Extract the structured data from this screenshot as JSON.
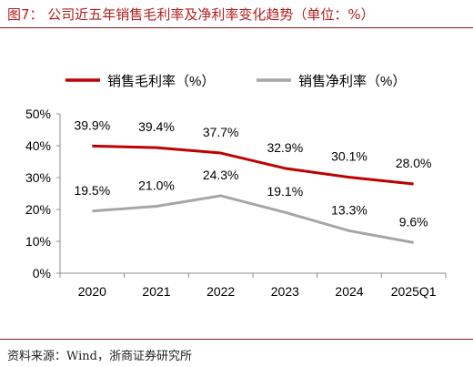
{
  "figure": {
    "title": "图7：  公司近五年销售毛利率及净利率变化趋势（单位：%）",
    "source": "资料来源：Wind，浙商证券研究所"
  },
  "chart_data": {
    "type": "line",
    "categories": [
      "2020",
      "2021",
      "2022",
      "2023",
      "2024",
      "2025Q1"
    ],
    "series": [
      {
        "name": "销售毛利率（%）",
        "values": [
          39.9,
          39.4,
          37.7,
          32.9,
          30.1,
          28.0
        ],
        "color": "#c00000",
        "labels": [
          "39.9%",
          "39.4%",
          "37.7%",
          "32.9%",
          "30.1%",
          "28.0%"
        ]
      },
      {
        "name": "销售净利率（%）",
        "values": [
          19.5,
          21.0,
          24.3,
          19.1,
          13.3,
          9.6
        ],
        "color": "#a6a6a6",
        "labels": [
          "19.5%",
          "21.0%",
          "24.3%",
          "19.1%",
          "13.3%",
          "9.6%"
        ]
      }
    ],
    "yticks": [
      "0%",
      "10%",
      "20%",
      "30%",
      "40%",
      "50%"
    ],
    "ylim": [
      0,
      50
    ],
    "grid": false,
    "legend": "top"
  }
}
